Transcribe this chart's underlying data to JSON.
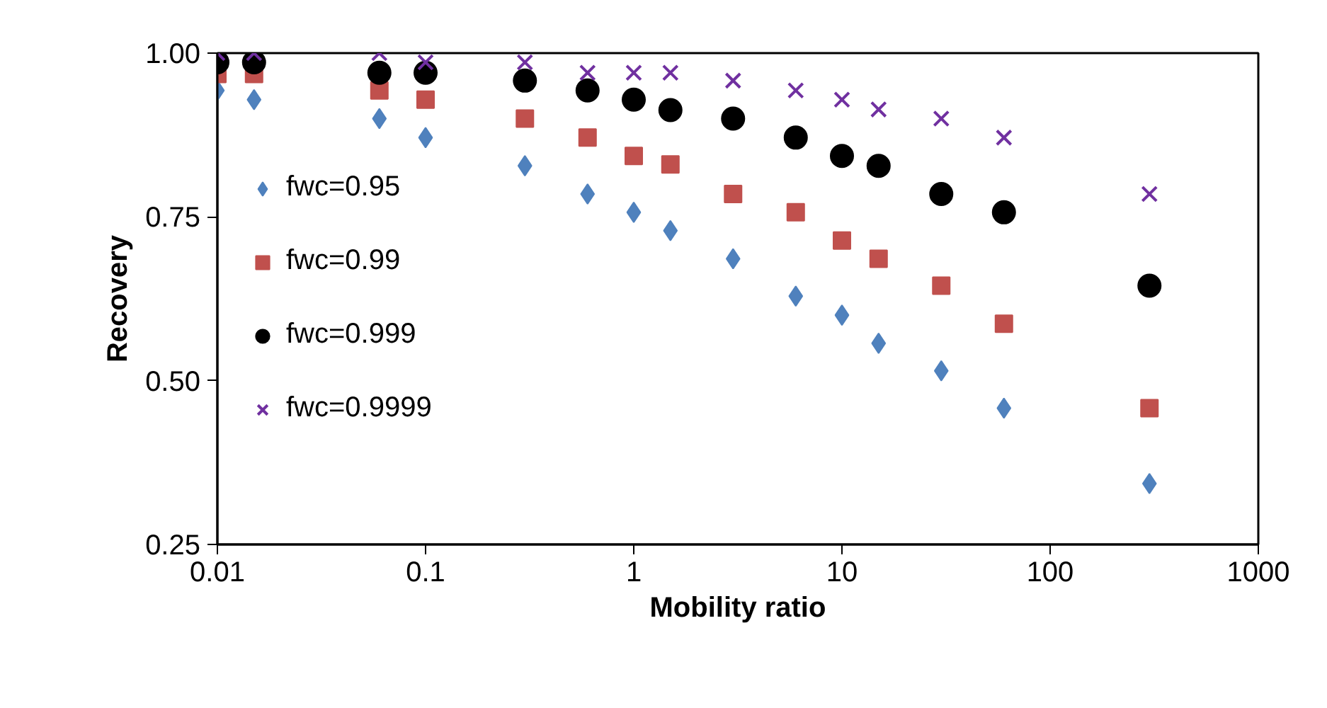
{
  "chart_data": {
    "type": "scatter",
    "xlabel": "Mobility ratio",
    "ylabel": "Recovery",
    "x": [
      0.01,
      0.015,
      0.06,
      0.1,
      0.3,
      0.6,
      1,
      1.5,
      3,
      6,
      10,
      15,
      30,
      60,
      300
    ],
    "series": [
      {
        "name": "fwc=0.95",
        "color": "#4f81bd",
        "marker": "diamond",
        "values": [
          0.943,
          0.929,
          0.9,
          0.871,
          0.828,
          0.785,
          0.757,
          0.729,
          0.686,
          0.629,
          0.6,
          0.557,
          0.515,
          0.458,
          0.343
        ]
      },
      {
        "name": "fwc=0.99",
        "color": "#c0504d",
        "marker": "square",
        "values": [
          0.968,
          0.968,
          0.943,
          0.929,
          0.9,
          0.871,
          0.843,
          0.83,
          0.785,
          0.757,
          0.714,
          0.686,
          0.645,
          0.587,
          0.458
        ]
      },
      {
        "name": "fwc=0.999",
        "color": "#000000",
        "marker": "circle",
        "values": [
          0.986,
          0.986,
          0.97,
          0.97,
          0.958,
          0.943,
          0.929,
          0.913,
          0.9,
          0.871,
          0.843,
          0.828,
          0.785,
          0.757,
          0.645
        ]
      },
      {
        "name": "fwc=0.9999",
        "color": "#7030a0",
        "marker": "cross",
        "values": [
          1.0,
          1.0,
          1.0,
          0.986,
          0.986,
          0.97,
          0.97,
          0.97,
          0.958,
          0.943,
          0.929,
          0.914,
          0.9,
          0.871,
          0.785
        ]
      }
    ],
    "log": "x",
    "xlim": [
      0.01,
      1000
    ],
    "xticks": [
      0.01,
      0.1,
      1,
      10,
      100,
      1000
    ],
    "ylim": [
      0.25,
      1.0
    ],
    "yticks": [
      {
        "value": 0.25,
        "label": "0.25"
      },
      {
        "value": 0.5,
        "label": "0.50"
      },
      {
        "value": 0.75,
        "label": "0.75"
      },
      {
        "value": 1.0,
        "label": "1.00"
      }
    ],
    "grid": false,
    "legend": "left"
  }
}
